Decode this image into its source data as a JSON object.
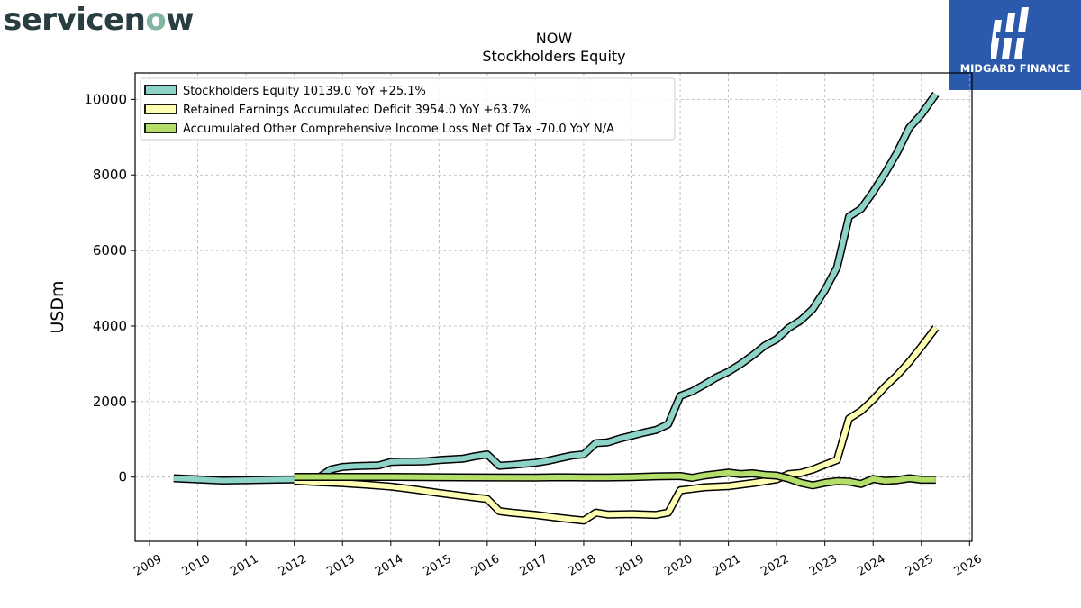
{
  "branding": {
    "left_logo_text": "servicenow",
    "right_logo_text": "MIDGARD FINANCE",
    "right_logo_color": "#2b5aad"
  },
  "chart_data": {
    "type": "line",
    "title": "NOW",
    "subtitle": "Stockholders  Equity",
    "ylabel": "USDm",
    "xlabel": "",
    "xlim": [
      2008.7,
      2026.05
    ],
    "ylim": [
      -1700,
      10700
    ],
    "yticks": [
      0,
      2000,
      4000,
      6000,
      8000,
      10000
    ],
    "xticks": [
      2009,
      2010,
      2011,
      2012,
      2013,
      2014,
      2015,
      2016,
      2017,
      2018,
      2019,
      2020,
      2021,
      2022,
      2023,
      2024,
      2025,
      2026
    ],
    "grid": true,
    "legend_position": "top-left",
    "series": [
      {
        "name": "Stockholders Equity  10139.0 YoY +25.1%",
        "color": "#8dd3c7",
        "x": [
          2009.5,
          2010.0,
          2010.5,
          2011.0,
          2011.5,
          2012.0,
          2012.25,
          2012.5,
          2012.75,
          2013.0,
          2013.25,
          2013.5,
          2013.75,
          2014.0,
          2014.25,
          2014.5,
          2014.75,
          2015.0,
          2015.25,
          2015.5,
          2015.75,
          2016.0,
          2016.25,
          2016.5,
          2016.75,
          2017.0,
          2017.25,
          2017.5,
          2017.75,
          2018.0,
          2018.25,
          2018.5,
          2018.75,
          2019.0,
          2019.25,
          2019.5,
          2019.75,
          2020.0,
          2020.25,
          2020.5,
          2020.75,
          2021.0,
          2021.25,
          2021.5,
          2021.75,
          2022.0,
          2022.25,
          2022.5,
          2022.75,
          2023.0,
          2023.25,
          2023.5,
          2023.75,
          2024.0,
          2024.25,
          2024.5,
          2024.75,
          2025.0,
          2025.3
        ],
        "y": [
          -30,
          -60,
          -90,
          -80,
          -70,
          -60,
          -40,
          -20,
          200,
          270,
          290,
          300,
          310,
          400,
          410,
          410,
          420,
          450,
          470,
          490,
          550,
          600,
          300,
          320,
          350,
          380,
          430,
          500,
          570,
          600,
          900,
          920,
          1020,
          1100,
          1180,
          1250,
          1400,
          2150,
          2270,
          2450,
          2640,
          2790,
          2990,
          3220,
          3480,
          3650,
          3950,
          4150,
          4450,
          4950,
          5550,
          6900,
          7100,
          7550,
          8050,
          8600,
          9250,
          9600,
          10139
        ]
      },
      {
        "name": "Retained Earnings Accumulated Deficit  3954.0 YoY +63.7%",
        "color": "#ffffb3",
        "x": [
          2012.0,
          2012.5,
          2013.0,
          2013.5,
          2014.0,
          2014.5,
          2015.0,
          2015.5,
          2016.0,
          2016.25,
          2016.5,
          2017.0,
          2017.5,
          2018.0,
          2018.25,
          2018.5,
          2019.0,
          2019.5,
          2019.75,
          2020.0,
          2020.5,
          2021.0,
          2021.5,
          2022.0,
          2022.25,
          2022.5,
          2022.75,
          2023.0,
          2023.25,
          2023.5,
          2023.75,
          2024.0,
          2024.25,
          2024.5,
          2024.75,
          2025.0,
          2025.3
        ],
        "y": [
          -100,
          -130,
          -160,
          -200,
          -250,
          -330,
          -420,
          -500,
          -580,
          -900,
          -940,
          -1000,
          -1080,
          -1150,
          -940,
          -990,
          -980,
          -1000,
          -940,
          -350,
          -270,
          -240,
          -160,
          -60,
          80,
          110,
          200,
          330,
          450,
          1550,
          1750,
          2050,
          2400,
          2700,
          3050,
          3450,
          3954
        ]
      },
      {
        "name": "Accumulated Other Comprehensive Income Loss Net Of Tax  -70.0 YoY N/A",
        "color": "#b3de69",
        "x": [
          2012.0,
          2013.0,
          2014.0,
          2015.0,
          2016.0,
          2017.0,
          2017.5,
          2018.0,
          2018.5,
          2019.0,
          2019.5,
          2020.0,
          2020.25,
          2020.5,
          2020.75,
          2021.0,
          2021.25,
          2021.5,
          2021.75,
          2022.0,
          2022.25,
          2022.5,
          2022.75,
          2023.0,
          2023.25,
          2023.5,
          2023.75,
          2024.0,
          2024.25,
          2024.5,
          2024.75,
          2025.0,
          2025.3
        ],
        "y": [
          5,
          5,
          5,
          -5,
          -10,
          -15,
          -5,
          -10,
          -10,
          0,
          20,
          30,
          -20,
          40,
          80,
          120,
          80,
          100,
          60,
          40,
          -40,
          -150,
          -220,
          -150,
          -110,
          -120,
          -180,
          -50,
          -100,
          -80,
          -30,
          -70,
          -70
        ]
      }
    ]
  }
}
